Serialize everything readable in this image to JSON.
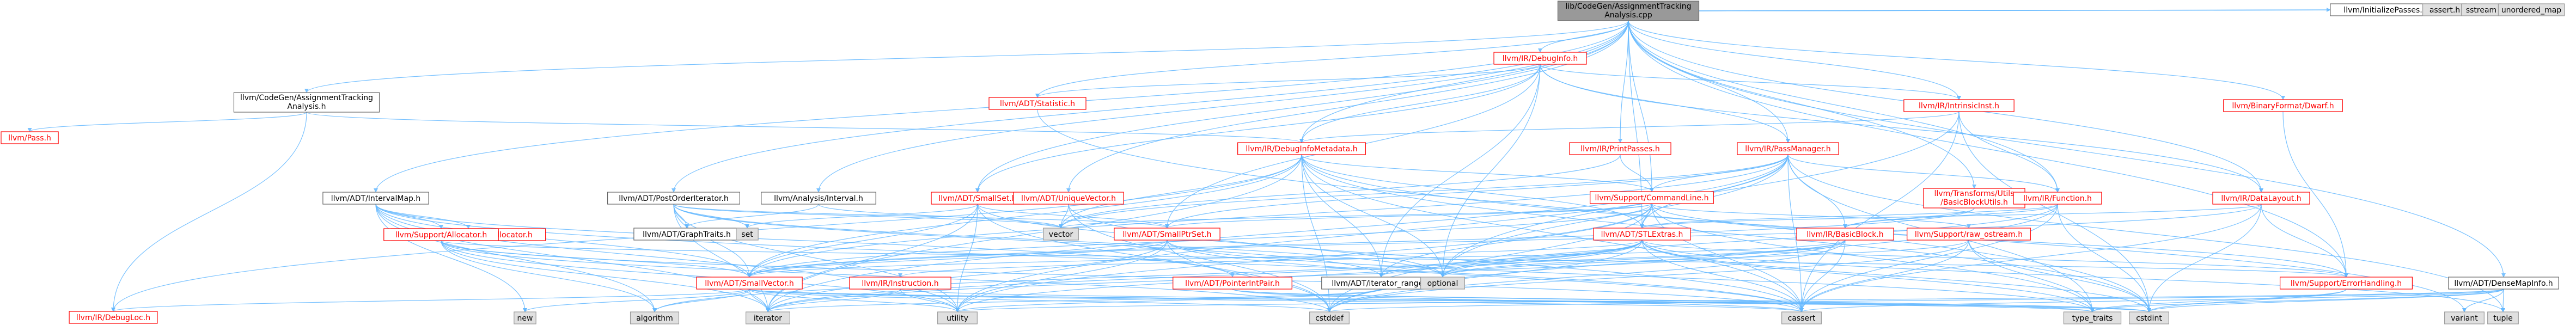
{
  "diagram": {
    "title_lines": [
      "lib/CodeGen/AssignmentTracking",
      "Analysis.cpp"
    ],
    "colors": {
      "root_fill": "#999999",
      "root_text": "#000000",
      "linked_border": "#ff0000",
      "linked_text": "#ff0000",
      "system_fill": "#e0e0e0",
      "system_border": "#999999",
      "plain_border": "#666666",
      "edge": "#63b8ff"
    },
    "nodes": [
      {
        "id": "root",
        "lines": [
          "lib/CodeGen/AssignmentTracking",
          "Analysis.cpp"
        ],
        "kind": "root"
      },
      {
        "id": "atah",
        "lines": [
          "llvm/CodeGen/AssignmentTracking",
          "Analysis.h"
        ],
        "kind": "plain"
      },
      {
        "id": "pass",
        "lines": [
          "llvm/Pass.h"
        ],
        "kind": "linked"
      },
      {
        "id": "debugloc",
        "lines": [
          "llvm/IR/DebugLoc.h"
        ],
        "kind": "linked"
      },
      {
        "id": "intervalmap",
        "lines": [
          "llvm/ADT/IntervalMap.h"
        ],
        "kind": "plain"
      },
      {
        "id": "recyclingalloc",
        "lines": [
          "llvm/Support/RecyclingAllocator.h"
        ],
        "kind": "linked"
      },
      {
        "id": "allocator",
        "lines": [
          "llvm/Support/Allocator.h"
        ],
        "kind": "linked"
      },
      {
        "id": "postorder",
        "lines": [
          "llvm/ADT/PostOrderIterator.h"
        ],
        "kind": "plain"
      },
      {
        "id": "graphtraits",
        "lines": [
          "llvm/ADT/GraphTraits.h"
        ],
        "kind": "plain"
      },
      {
        "id": "set",
        "lines": [
          "set"
        ],
        "kind": "system"
      },
      {
        "id": "intervalh",
        "lines": [
          "llvm/Analysis/Interval.h"
        ],
        "kind": "plain"
      },
      {
        "id": "smallset",
        "lines": [
          "llvm/ADT/SmallSet.h"
        ],
        "kind": "linked"
      },
      {
        "id": "statistic",
        "lines": [
          "llvm/ADT/Statistic.h"
        ],
        "kind": "linked"
      },
      {
        "id": "uniquevector",
        "lines": [
          "llvm/ADT/UniqueVector.h"
        ],
        "kind": "linked"
      },
      {
        "id": "debuginfo",
        "lines": [
          "llvm/IR/DebugInfo.h"
        ],
        "kind": "linked"
      },
      {
        "id": "debuginfometa",
        "lines": [
          "llvm/IR/DebugInfoMetadata.h"
        ],
        "kind": "linked"
      },
      {
        "id": "printpasses",
        "lines": [
          "llvm/IR/PrintPasses.h"
        ],
        "kind": "linked"
      },
      {
        "id": "passmanager",
        "lines": [
          "llvm/IR/PassManager.h"
        ],
        "kind": "linked"
      },
      {
        "id": "commandline",
        "lines": [
          "llvm/Support/CommandLine.h"
        ],
        "kind": "linked"
      },
      {
        "id": "intrinsicinst",
        "lines": [
          "llvm/IR/IntrinsicInst.h"
        ],
        "kind": "linked"
      },
      {
        "id": "basicblockutils",
        "lines": [
          "llvm/Transforms/Utils",
          "/BasicBlockUtils.h"
        ],
        "kind": "linked"
      },
      {
        "id": "function",
        "lines": [
          "llvm/IR/Function.h"
        ],
        "kind": "linked"
      },
      {
        "id": "datalayout",
        "lines": [
          "llvm/IR/DataLayout.h"
        ],
        "kind": "linked"
      },
      {
        "id": "binaryformat",
        "lines": [
          "llvm/BinaryFormat/Dwarf.h"
        ],
        "kind": "linked"
      },
      {
        "id": "densemapinfo",
        "lines": [
          "llvm/ADT/DenseMapInfo.h"
        ],
        "kind": "plain"
      },
      {
        "id": "initpasses",
        "lines": [
          "llvm/InitializePasses.h"
        ],
        "kind": "plain"
      },
      {
        "id": "assert",
        "lines": [
          "assert.h"
        ],
        "kind": "system"
      },
      {
        "id": "sstream",
        "lines": [
          "sstream"
        ],
        "kind": "system"
      },
      {
        "id": "unordered",
        "lines": [
          "unordered_map"
        ],
        "kind": "system"
      },
      {
        "id": "smallptrset",
        "lines": [
          "llvm/ADT/SmallPtrSet.h"
        ],
        "kind": "linked"
      },
      {
        "id": "vector",
        "lines": [
          "vector"
        ],
        "kind": "system"
      },
      {
        "id": "stlextras",
        "lines": [
          "llvm/ADT/STLExtras.h"
        ],
        "kind": "linked"
      },
      {
        "id": "basicblock",
        "lines": [
          "llvm/IR/BasicBlock.h"
        ],
        "kind": "linked"
      },
      {
        "id": "rawostream",
        "lines": [
          "llvm/Support/raw_ostream.h"
        ],
        "kind": "linked"
      },
      {
        "id": "smallvector",
        "lines": [
          "llvm/ADT/SmallVector.h"
        ],
        "kind": "linked"
      },
      {
        "id": "instruction",
        "lines": [
          "llvm/IR/Instruction.h"
        ],
        "kind": "linked"
      },
      {
        "id": "pointerintpair",
        "lines": [
          "llvm/ADT/PointerIntPair.h"
        ],
        "kind": "linked"
      },
      {
        "id": "iterrange",
        "lines": [
          "llvm/ADT/iterator_range.h"
        ],
        "kind": "plain"
      },
      {
        "id": "optional",
        "lines": [
          "optional"
        ],
        "kind": "system"
      },
      {
        "id": "errorhandling",
        "lines": [
          "llvm/Support/ErrorHandling.h"
        ],
        "kind": "linked"
      },
      {
        "id": "new",
        "lines": [
          "new"
        ],
        "kind": "system"
      },
      {
        "id": "algorithm",
        "lines": [
          "algorithm"
        ],
        "kind": "system"
      },
      {
        "id": "iterator",
        "lines": [
          "iterator"
        ],
        "kind": "system"
      },
      {
        "id": "utility",
        "lines": [
          "utility"
        ],
        "kind": "system"
      },
      {
        "id": "cstddef",
        "lines": [
          "cstddef"
        ],
        "kind": "system"
      },
      {
        "id": "cassert",
        "lines": [
          "cassert"
        ],
        "kind": "system"
      },
      {
        "id": "typetraits",
        "lines": [
          "type_traits"
        ],
        "kind": "system"
      },
      {
        "id": "cstdint",
        "lines": [
          "cstdint"
        ],
        "kind": "system"
      },
      {
        "id": "variant",
        "lines": [
          "variant"
        ],
        "kind": "system"
      },
      {
        "id": "tuple",
        "lines": [
          "tuple"
        ],
        "kind": "system"
      }
    ],
    "edges": [
      [
        "root",
        "atah"
      ],
      [
        "root",
        "intervalmap"
      ],
      [
        "root",
        "postorder"
      ],
      [
        "root",
        "intervalh"
      ],
      [
        "root",
        "smallset"
      ],
      [
        "root",
        "statistic"
      ],
      [
        "root",
        "uniquevector"
      ],
      [
        "root",
        "debuginfo"
      ],
      [
        "root",
        "printpasses"
      ],
      [
        "root",
        "passmanager"
      ],
      [
        "root",
        "intrinsicinst"
      ],
      [
        "root",
        "basicblockutils"
      ],
      [
        "root",
        "function"
      ],
      [
        "root",
        "datalayout"
      ],
      [
        "root",
        "binaryformat"
      ],
      [
        "root",
        "densemapinfo"
      ],
      [
        "root",
        "initpasses"
      ],
      [
        "root",
        "assert"
      ],
      [
        "root",
        "sstream"
      ],
      [
        "root",
        "unordered"
      ],
      [
        "root",
        "commandline"
      ],
      [
        "root",
        "debuginfometa"
      ],
      [
        "root",
        "errorhandling"
      ],
      [
        "root",
        "stlextras"
      ],
      [
        "atah",
        "pass"
      ],
      [
        "atah",
        "debugloc"
      ],
      [
        "atah",
        "debuginfometa"
      ],
      [
        "intervalmap",
        "recyclingalloc"
      ],
      [
        "intervalmap",
        "allocator"
      ],
      [
        "intervalmap",
        "smallvector"
      ],
      [
        "intervalmap",
        "pointerintpair"
      ],
      [
        "intervalmap",
        "algorithm"
      ],
      [
        "intervalmap",
        "iterator"
      ],
      [
        "intervalmap",
        "new"
      ],
      [
        "intervalmap",
        "utility"
      ],
      [
        "intervalmap",
        "cassert"
      ],
      [
        "allocator",
        "smallvector"
      ],
      [
        "allocator",
        "errorhandling"
      ],
      [
        "allocator",
        "algorithm"
      ],
      [
        "allocator",
        "cassert"
      ],
      [
        "allocator",
        "cstddef"
      ],
      [
        "allocator",
        "iterator"
      ],
      [
        "allocator",
        "utility"
      ],
      [
        "postorder",
        "graphtraits"
      ],
      [
        "postorder",
        "set"
      ],
      [
        "postorder",
        "smallptrset"
      ],
      [
        "postorder",
        "smallvector"
      ],
      [
        "postorder",
        "iterrange"
      ],
      [
        "postorder",
        "optional"
      ],
      [
        "postorder",
        "iterator"
      ],
      [
        "postorder",
        "vector"
      ],
      [
        "postorder",
        "utility"
      ],
      [
        "intervalh",
        "graphtraits"
      ],
      [
        "intervalh",
        "vector"
      ],
      [
        "smallset",
        "smallptrset"
      ],
      [
        "smallset",
        "smallvector"
      ],
      [
        "smallset",
        "iterator"
      ],
      [
        "smallset",
        "utility"
      ],
      [
        "smallset",
        "set"
      ],
      [
        "smallset",
        "cstddef"
      ],
      [
        "smallset",
        "optional"
      ],
      [
        "statistic",
        "cstdint"
      ],
      [
        "statistic",
        "atomic"
      ],
      [
        "uniquevector",
        "vector"
      ],
      [
        "uniquevector",
        "cassert"
      ],
      [
        "uniquevector",
        "cstddef"
      ],
      [
        "debuginfo",
        "statistic"
      ],
      [
        "debuginfo",
        "smallptrset"
      ],
      [
        "debuginfo",
        "smallset"
      ],
      [
        "debuginfo",
        "debuginfometa"
      ],
      [
        "debuginfo",
        "intrinsicinst"
      ],
      [
        "debuginfo",
        "passmanager"
      ],
      [
        "debuginfo",
        "iterrange"
      ],
      [
        "debuginfo",
        "optional"
      ],
      [
        "debuginfo",
        "datalayout"
      ],
      [
        "debuginfometa",
        "vector"
      ],
      [
        "debuginfometa",
        "stlextras"
      ],
      [
        "debuginfometa",
        "smallvector"
      ],
      [
        "debuginfometa",
        "iterrange"
      ],
      [
        "debuginfometa",
        "commandline"
      ],
      [
        "debuginfometa",
        "cassert"
      ],
      [
        "debuginfometa",
        "cstddef"
      ],
      [
        "debuginfometa",
        "cstdint"
      ],
      [
        "debuginfometa",
        "iterator"
      ],
      [
        "debuginfometa",
        "optional"
      ],
      [
        "debuginfometa",
        "variant"
      ],
      [
        "debuginfometa",
        "debugloc"
      ],
      [
        "printpasses",
        "commandline"
      ],
      [
        "printpasses",
        "vector"
      ],
      [
        "passmanager",
        "stlextras"
      ],
      [
        "passmanager",
        "smallptrset"
      ],
      [
        "passmanager",
        "smallvector"
      ],
      [
        "passmanager",
        "function"
      ],
      [
        "passmanager",
        "commandline"
      ],
      [
        "passmanager",
        "typetraits"
      ],
      [
        "passmanager",
        "cassert"
      ],
      [
        "passmanager",
        "cstring"
      ],
      [
        "passmanager",
        "iterator"
      ],
      [
        "passmanager",
        "utility"
      ],
      [
        "passmanager",
        "vector"
      ],
      [
        "passmanager",
        "tuple"
      ],
      [
        "passmanager",
        "optional"
      ],
      [
        "passmanager",
        "basicblock"
      ],
      [
        "commandline",
        "stlextras"
      ],
      [
        "commandline",
        "smallptrset"
      ],
      [
        "commandline",
        "smallvector"
      ],
      [
        "commandline",
        "iterrange"
      ],
      [
        "commandline",
        "errorhandling"
      ],
      [
        "commandline",
        "rawostream"
      ],
      [
        "commandline",
        "cassert"
      ],
      [
        "commandline",
        "cstddef"
      ],
      [
        "commandline",
        "typetraits"
      ],
      [
        "commandline",
        "vector"
      ],
      [
        "commandline",
        "utility"
      ],
      [
        "intrinsicinst",
        "function"
      ],
      [
        "intrinsicinst",
        "debuginfometa"
      ],
      [
        "intrinsicinst",
        "cassert"
      ],
      [
        "intrinsicinst",
        "cstdint"
      ],
      [
        "intrinsicinst",
        "optional"
      ],
      [
        "basicblockutils",
        "basicblock"
      ],
      [
        "basicblockutils",
        "smallvector"
      ],
      [
        "function",
        "basicblock"
      ],
      [
        "function",
        "stlextras"
      ],
      [
        "function",
        "cassert"
      ],
      [
        "function",
        "cstddef"
      ],
      [
        "function",
        "cstdint"
      ],
      [
        "function",
        "optional"
      ],
      [
        "datalayout",
        "stlextras"
      ],
      [
        "datalayout",
        "smallvector"
      ],
      [
        "datalayout",
        "errorhandling"
      ],
      [
        "datalayout",
        "cassert"
      ],
      [
        "datalayout",
        "cstdint"
      ],
      [
        "binaryformat",
        "errorhandling"
      ],
      [
        "densemapinfo",
        "cassert"
      ],
      [
        "densemapinfo",
        "cstddef"
      ],
      [
        "densemapinfo",
        "cstdint"
      ],
      [
        "densemapinfo",
        "tuple"
      ],
      [
        "densemapinfo",
        "typetraits"
      ],
      [
        "densemapinfo",
        "utility"
      ],
      [
        "densemapinfo",
        "variant"
      ],
      [
        "smallptrset",
        "smallvector"
      ],
      [
        "smallptrset",
        "typetraits"
      ],
      [
        "smallptrset",
        "cassert"
      ],
      [
        "smallptrset",
        "cstddef"
      ],
      [
        "smallptrset",
        "iterator"
      ],
      [
        "smallptrset",
        "utility"
      ],
      [
        "stlextras",
        "smallvector"
      ],
      [
        "stlextras",
        "iterrange"
      ],
      [
        "stlextras",
        "errorhandling"
      ],
      [
        "stlextras",
        "algorithm"
      ],
      [
        "stlextras",
        "cassert"
      ],
      [
        "stlextras",
        "cstddef"
      ],
      [
        "stlextras",
        "cstdint"
      ],
      [
        "stlextras",
        "iterator"
      ],
      [
        "stlextras",
        "optional"
      ],
      [
        "stlextras",
        "typetraits"
      ],
      [
        "stlextras",
        "utility"
      ],
      [
        "stlextras",
        "tuple"
      ],
      [
        "basicblock",
        "instruction"
      ],
      [
        "basicblock",
        "iterrange"
      ],
      [
        "basicblock",
        "cassert"
      ],
      [
        "basicblock",
        "cstddef"
      ],
      [
        "basicblock",
        "iterator"
      ],
      [
        "basicblock",
        "optional"
      ],
      [
        "rawostream",
        "cassert"
      ],
      [
        "rawostream",
        "cstddef"
      ],
      [
        "rawostream",
        "cstdint"
      ],
      [
        "rawostream",
        "typetraits"
      ],
      [
        "rawostream",
        "optional"
      ],
      [
        "smallvector",
        "algorithm"
      ],
      [
        "smallvector",
        "cassert"
      ],
      [
        "smallvector",
        "cstddef"
      ],
      [
        "smallvector",
        "iterator"
      ],
      [
        "smallvector",
        "new"
      ],
      [
        "smallvector",
        "utility"
      ],
      [
        "smallvector",
        "typetraits"
      ],
      [
        "smallvector",
        "cstdint"
      ],
      [
        "smallvector",
        "debugloc"
      ],
      [
        "instruction",
        "cstdint"
      ],
      [
        "instruction",
        "utility"
      ],
      [
        "instruction",
        "iterator"
      ],
      [
        "pointerintpair",
        "cassert"
      ],
      [
        "pointerintpair",
        "cstdint"
      ],
      [
        "pointerintpair",
        "typetraits"
      ],
      [
        "iterrange",
        "utility"
      ],
      [
        "iterrange",
        "iterator"
      ],
      [
        "errorhandling",
        "cstdint"
      ],
      [
        "errorhandling",
        "typetraits"
      ]
    ]
  }
}
